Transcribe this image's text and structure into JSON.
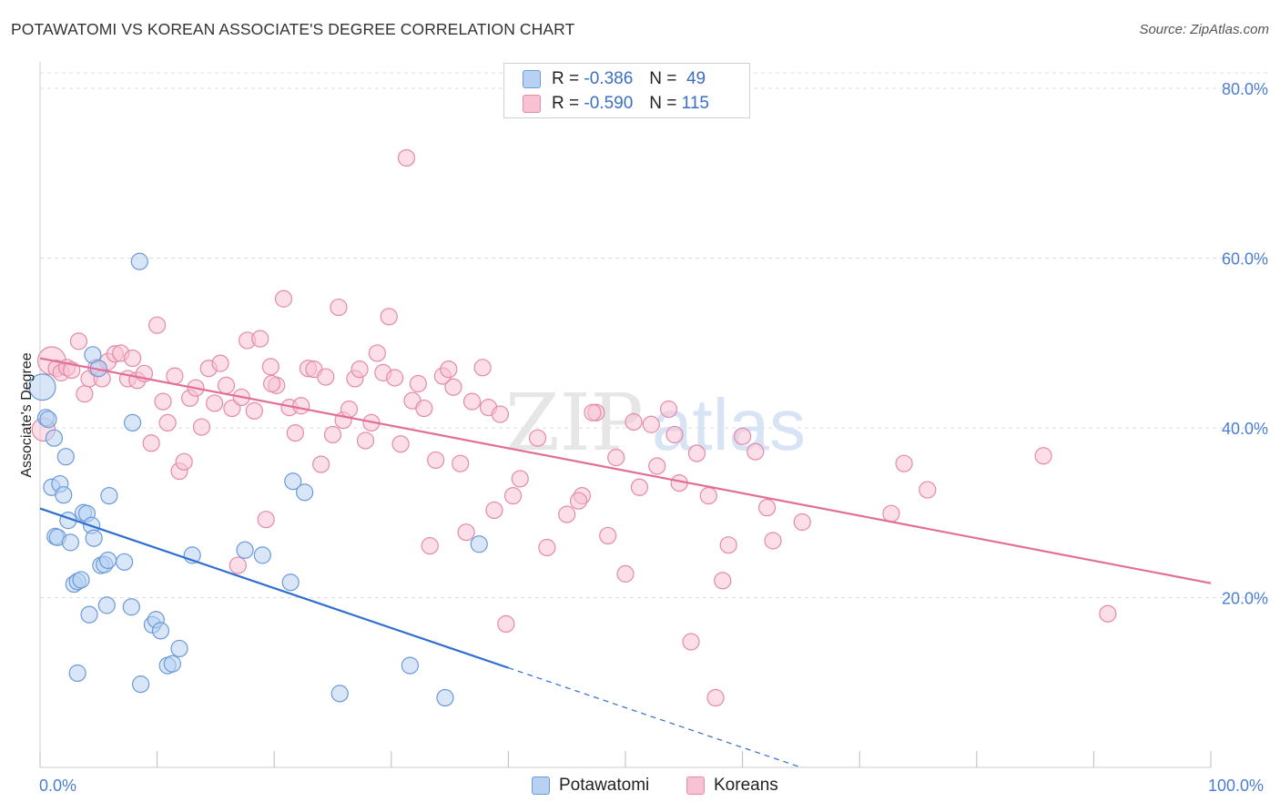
{
  "title": "POTAWATOMI VS KOREAN ASSOCIATE'S DEGREE CORRELATION CHART",
  "source": "Source: ZipAtlas.com",
  "watermark": {
    "zip": "ZIP",
    "atlas": "atlas"
  },
  "legend": {
    "rows": [
      {
        "r_label": "R =",
        "r_value": "-0.386",
        "n_label": "N =",
        "n_value": "49"
      },
      {
        "r_label": "R =",
        "r_value": "-0.590",
        "n_label": "N =",
        "n_value": "115"
      }
    ]
  },
  "colors": {
    "potawatomi_fill": "#b8d1f3",
    "potawatomi_stroke": "#6a9ad8",
    "potawatomi_line": "#2f6fd0",
    "koreans_fill": "#f7c3d3",
    "koreans_stroke": "#e48aa9",
    "koreans_line": "#e26f98",
    "axis_label": "#4a7ed0",
    "grid": "#dddddd"
  },
  "chart_data": {
    "type": "scatter",
    "xlabel": "",
    "ylabel": "Associate's Degree",
    "xlim": [
      0,
      100
    ],
    "ylim": [
      0,
      80
    ],
    "x_tick_labels": {
      "min": "0.0%",
      "max": "100.0%"
    },
    "y_ticks": [
      {
        "value": 20,
        "label": "20.0%"
      },
      {
        "value": 40,
        "label": "40.0%"
      },
      {
        "value": 60,
        "label": "60.0%"
      },
      {
        "value": 80,
        "label": "80.0%"
      }
    ],
    "series": [
      {
        "name": "Potawatomi",
        "r": -0.386,
        "n": 49,
        "trend": {
          "x0": 0,
          "y0": 30.5,
          "x_solid_end": 40,
          "x1": 65,
          "y1": 0
        },
        "points": [
          [
            0.2,
            44.8,
            1.6
          ],
          [
            0.5,
            41.2,
            1
          ],
          [
            0.7,
            41.0,
            1
          ],
          [
            1.2,
            38.8,
            1
          ],
          [
            1.0,
            33.0,
            1
          ],
          [
            1.7,
            33.4,
            1
          ],
          [
            2.0,
            32.1,
            1
          ],
          [
            2.2,
            36.6,
            1
          ],
          [
            1.3,
            27.2,
            1
          ],
          [
            1.5,
            27.1,
            1
          ],
          [
            2.4,
            29.1,
            1
          ],
          [
            2.6,
            26.5,
            1
          ],
          [
            2.9,
            21.6,
            1
          ],
          [
            3.2,
            21.9,
            1
          ],
          [
            3.5,
            22.1,
            1
          ],
          [
            3.7,
            30.0,
            1
          ],
          [
            4.0,
            29.9,
            1
          ],
          [
            4.4,
            28.5,
            1
          ],
          [
            4.6,
            27.0,
            1
          ],
          [
            3.2,
            11.1,
            1
          ],
          [
            4.2,
            18.0,
            1
          ],
          [
            5.2,
            23.8,
            1
          ],
          [
            5.5,
            23.9,
            1
          ],
          [
            5.8,
            24.4,
            1
          ],
          [
            5.9,
            32.0,
            1
          ],
          [
            5.7,
            19.1,
            1
          ],
          [
            7.2,
            24.2,
            1
          ],
          [
            7.8,
            18.9,
            1
          ],
          [
            7.9,
            40.6,
            1
          ],
          [
            8.5,
            59.6,
            1
          ],
          [
            8.6,
            9.8,
            1
          ],
          [
            9.6,
            16.8,
            1
          ],
          [
            9.9,
            17.4,
            1
          ],
          [
            10.3,
            16.1,
            1
          ],
          [
            10.9,
            12.0,
            1
          ],
          [
            11.3,
            12.2,
            1
          ],
          [
            11.9,
            14.0,
            1
          ],
          [
            13.0,
            25.0,
            1
          ],
          [
            17.5,
            25.6,
            1
          ],
          [
            19.0,
            25.0,
            1
          ],
          [
            21.4,
            21.8,
            1
          ],
          [
            21.6,
            33.7,
            1
          ],
          [
            22.6,
            32.4,
            1
          ],
          [
            25.6,
            8.7,
            1
          ],
          [
            31.6,
            12.0,
            1
          ],
          [
            34.6,
            8.2,
            1
          ],
          [
            37.5,
            26.3,
            1
          ],
          [
            4.5,
            48.6,
            1
          ],
          [
            5.0,
            47.0,
            1
          ]
        ]
      },
      {
        "name": "Koreans",
        "r": -0.59,
        "n": 115,
        "trend": {
          "x0": 0,
          "y0": 48.2,
          "x1": 100,
          "y1": 21.7
        },
        "points": [
          [
            1.0,
            47.9,
            1.7
          ],
          [
            0.3,
            39.8,
            1.4
          ],
          [
            1.4,
            47.0,
            1
          ],
          [
            1.8,
            46.5,
            1
          ],
          [
            2.3,
            47.1,
            1
          ],
          [
            2.7,
            46.8,
            1
          ],
          [
            3.3,
            50.2,
            1
          ],
          [
            3.8,
            44.0,
            1
          ],
          [
            4.2,
            45.8,
            1
          ],
          [
            4.8,
            47.1,
            1
          ],
          [
            5.3,
            45.8,
            1
          ],
          [
            5.8,
            47.8,
            1
          ],
          [
            6.4,
            48.7,
            1
          ],
          [
            6.9,
            48.8,
            1
          ],
          [
            7.5,
            45.8,
            1
          ],
          [
            7.9,
            48.2,
            1
          ],
          [
            8.3,
            45.6,
            1
          ],
          [
            8.9,
            46.4,
            1
          ],
          [
            9.5,
            38.2,
            1
          ],
          [
            10.0,
            52.1,
            1
          ],
          [
            10.5,
            43.1,
            1
          ],
          [
            10.9,
            40.6,
            1
          ],
          [
            11.5,
            46.1,
            1
          ],
          [
            11.9,
            34.9,
            1
          ],
          [
            12.3,
            36.0,
            1
          ],
          [
            12.8,
            43.5,
            1
          ],
          [
            13.3,
            44.7,
            1
          ],
          [
            13.8,
            40.1,
            1
          ],
          [
            14.4,
            47.0,
            1
          ],
          [
            14.9,
            42.9,
            1
          ],
          [
            15.4,
            47.6,
            1
          ],
          [
            15.9,
            45.0,
            1
          ],
          [
            16.4,
            42.3,
            1
          ],
          [
            16.9,
            23.8,
            1
          ],
          [
            17.2,
            43.6,
            1
          ],
          [
            17.7,
            50.3,
            1
          ],
          [
            18.3,
            42.0,
            1
          ],
          [
            18.8,
            50.5,
            1
          ],
          [
            19.3,
            29.2,
            1
          ],
          [
            19.7,
            47.2,
            1
          ],
          [
            20.2,
            45.0,
            1
          ],
          [
            20.8,
            55.2,
            1
          ],
          [
            21.3,
            42.4,
            1
          ],
          [
            21.8,
            39.4,
            1
          ],
          [
            22.3,
            42.6,
            1
          ],
          [
            22.9,
            47.0,
            1
          ],
          [
            23.4,
            46.9,
            1
          ],
          [
            24.0,
            35.7,
            1
          ],
          [
            24.4,
            46.0,
            1
          ],
          [
            25.0,
            39.2,
            1
          ],
          [
            25.5,
            54.2,
            1
          ],
          [
            25.9,
            40.9,
            1
          ],
          [
            26.4,
            42.2,
            1
          ],
          [
            26.9,
            45.8,
            1
          ],
          [
            27.3,
            46.9,
            1
          ],
          [
            27.8,
            38.5,
            1
          ],
          [
            28.3,
            40.6,
            1
          ],
          [
            28.8,
            48.8,
            1
          ],
          [
            29.3,
            46.5,
            1
          ],
          [
            29.8,
            53.1,
            1
          ],
          [
            30.3,
            45.9,
            1
          ],
          [
            30.8,
            38.1,
            1
          ],
          [
            31.3,
            71.8,
            1
          ],
          [
            31.8,
            43.2,
            1
          ],
          [
            32.3,
            45.2,
            1
          ],
          [
            32.8,
            42.3,
            1
          ],
          [
            33.3,
            26.1,
            1
          ],
          [
            33.8,
            36.2,
            1
          ],
          [
            34.4,
            46.1,
            1
          ],
          [
            34.9,
            46.9,
            1
          ],
          [
            35.3,
            44.8,
            1
          ],
          [
            35.9,
            35.8,
            1
          ],
          [
            36.4,
            27.7,
            1
          ],
          [
            36.9,
            43.1,
            1
          ],
          [
            37.8,
            47.1,
            1
          ],
          [
            38.3,
            42.4,
            1
          ],
          [
            38.8,
            30.3,
            1
          ],
          [
            39.3,
            41.6,
            1
          ],
          [
            39.8,
            16.9,
            1
          ],
          [
            40.4,
            32.0,
            1
          ],
          [
            41.0,
            34.0,
            1
          ],
          [
            42.5,
            38.8,
            1
          ],
          [
            43.3,
            25.9,
            1
          ],
          [
            45.0,
            29.8,
            1
          ],
          [
            46.3,
            32.0,
            1
          ],
          [
            47.5,
            41.8,
            1
          ],
          [
            48.5,
            27.3,
            1
          ],
          [
            49.2,
            36.5,
            1
          ],
          [
            50.0,
            22.8,
            1
          ],
          [
            50.7,
            40.7,
            1
          ],
          [
            51.2,
            33.0,
            1
          ],
          [
            52.2,
            40.4,
            1
          ],
          [
            52.7,
            35.5,
            1
          ],
          [
            53.7,
            42.2,
            1
          ],
          [
            54.2,
            39.2,
            1
          ],
          [
            54.6,
            33.5,
            1
          ],
          [
            55.6,
            14.8,
            1
          ],
          [
            56.1,
            37.0,
            1
          ],
          [
            57.1,
            32.0,
            1
          ],
          [
            58.3,
            22.0,
            1
          ],
          [
            58.8,
            26.2,
            1
          ],
          [
            60.0,
            39.0,
            1
          ],
          [
            61.1,
            37.2,
            1
          ],
          [
            62.1,
            30.6,
            1
          ],
          [
            62.6,
            26.7,
            1
          ],
          [
            65.1,
            28.9,
            1
          ],
          [
            57.7,
            8.2,
            1
          ],
          [
            72.7,
            29.9,
            1
          ],
          [
            73.8,
            35.8,
            1
          ],
          [
            75.8,
            32.7,
            1
          ],
          [
            85.7,
            36.7,
            1
          ],
          [
            91.2,
            18.1,
            1
          ],
          [
            46.0,
            31.4,
            1
          ],
          [
            47.2,
            41.8,
            1
          ],
          [
            19.8,
            45.2,
            1
          ]
        ]
      }
    ]
  },
  "bottom_legend": [
    {
      "label": "Potawatomi"
    },
    {
      "label": "Koreans"
    }
  ]
}
